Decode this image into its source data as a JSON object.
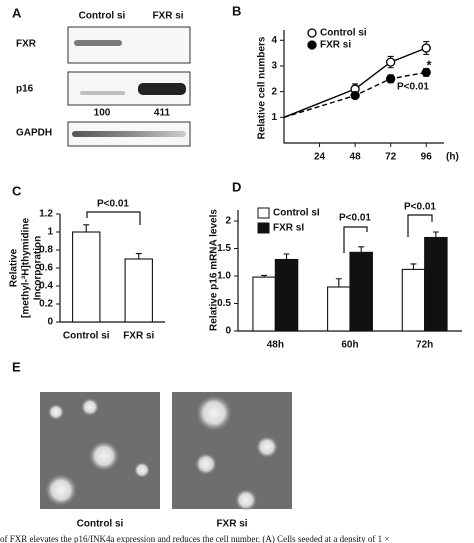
{
  "blot": {
    "label": "A",
    "columns": [
      "Control si",
      "FXR si"
    ],
    "rows": [
      "FXR",
      "p16",
      "GAPDH"
    ],
    "p16_quantification": [
      100,
      411
    ]
  },
  "chart_data": [
    {
      "type": "line",
      "label": "B",
      "y_label": "Relative cell numbers",
      "x_unit": "(h)",
      "x": [
        0,
        48,
        72,
        96
      ],
      "xlim": [
        0,
        108
      ],
      "xticks": [
        24,
        48,
        72,
        96
      ],
      "ylim": [
        0,
        4.4
      ],
      "yticks": [
        1,
        2,
        3,
        4
      ],
      "series": [
        {
          "name": "Control si",
          "color": "#000000",
          "marker": "open",
          "dash": false,
          "values": [
            1,
            2.1,
            3.15,
            3.7
          ],
          "errors": [
            null,
            0.2,
            0.22,
            0.25
          ]
        },
        {
          "name": "FXR si",
          "color": "#000000",
          "marker": "filled",
          "dash": true,
          "values": [
            1,
            1.85,
            2.5,
            2.75
          ],
          "errors": [
            null,
            0.1,
            0.15,
            0.15
          ]
        }
      ],
      "annotations": [
        "*",
        "P<0.01"
      ]
    },
    {
      "type": "bar",
      "label": "C",
      "y_label": [
        "Relative",
        "[methyl-³H]thymidine",
        "Incorporation"
      ],
      "categories": [
        "Control si",
        "FXR si"
      ],
      "values": [
        1.0,
        0.7
      ],
      "errors": [
        0.08,
        0.06
      ],
      "color": "#ffffff",
      "ylim": [
        0,
        1.2
      ],
      "yticks": [
        0,
        0.2,
        0.4,
        0.6,
        0.8,
        1,
        1.2
      ],
      "annotations": [
        "P<0.01"
      ]
    },
    {
      "type": "grouped_bar",
      "label": "D",
      "y_label": "Relative p16 mRNA levels",
      "categories": [
        "48h",
        "60h",
        "72h"
      ],
      "series": [
        {
          "name": "Control sI",
          "color": "#ffffff",
          "values": [
            0.98,
            0.8,
            1.12
          ],
          "errors": [
            0.03,
            0.15,
            0.1
          ]
        },
        {
          "name": "FXR sI",
          "color": "#111111",
          "values": [
            1.3,
            1.43,
            1.7
          ],
          "errors": [
            0.1,
            0.1,
            0.1
          ]
        }
      ],
      "ylim": [
        0,
        2.2
      ],
      "yticks": [
        0,
        0.5,
        {
          "value": 1,
          "label": "1.0"
        },
        1.5,
        2
      ],
      "annotations": [
        "P<0.01",
        "P<0.01"
      ]
    }
  ],
  "micrographs": {
    "label": "E",
    "captions": [
      "Control si",
      "FXR si"
    ]
  },
  "caption_fragment": "of FXR elevates the p16/INK4a expression and reduces the cell number. (A) Cells seeded at a density of 1 ×"
}
